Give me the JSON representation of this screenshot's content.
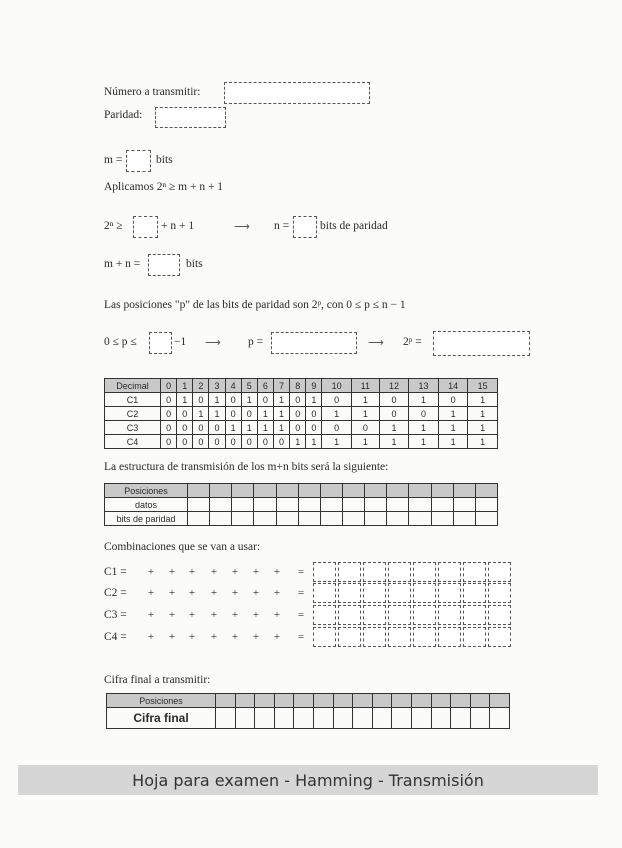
{
  "header": {
    "numero_label": "Número a transmitir:",
    "paridad_label": "Paridad:"
  },
  "calc": {
    "m_prefix": "m =",
    "m_suffix": "bits",
    "aplicamos": "Aplicamos 2ⁿ ≥ m + n + 1",
    "ineq_prefix": "2ⁿ ≥",
    "ineq_suffix": "+ n + 1",
    "arrow": "⟶",
    "n_prefix": "n =",
    "n_suffix": "bits de paridad",
    "mn_prefix": "m + n =",
    "mn_suffix": "bits"
  },
  "positions": {
    "text": "Las posiciones \"p\" de las bits de paridad son 2ᵖ, con  0 ≤ p ≤ n − 1",
    "range_prefix": "0 ≤ p ≤",
    "range_suffix": "−1",
    "p_label": "p =",
    "pow_label": "2ᵖ ="
  },
  "binary_table": {
    "header": [
      "Decimal",
      "0",
      "1",
      "2",
      "3",
      "4",
      "5",
      "6",
      "7",
      "8",
      "9",
      "10",
      "11",
      "12",
      "13",
      "14",
      "15"
    ],
    "rows": [
      [
        "C1",
        "0",
        "1",
        "0",
        "1",
        "0",
        "1",
        "0",
        "1",
        "0",
        "1",
        "0",
        "1",
        "0",
        "1",
        "0",
        "1"
      ],
      [
        "C2",
        "0",
        "0",
        "1",
        "1",
        "0",
        "0",
        "1",
        "1",
        "0",
        "0",
        "1",
        "1",
        "0",
        "0",
        "1",
        "1"
      ],
      [
        "C3",
        "0",
        "0",
        "0",
        "0",
        "1",
        "1",
        "1",
        "1",
        "0",
        "0",
        "0",
        "0",
        "1",
        "1",
        "1",
        "1"
      ],
      [
        "C4",
        "0",
        "0",
        "0",
        "0",
        "0",
        "0",
        "0",
        "0",
        "1",
        "1",
        "1",
        "1",
        "1",
        "1",
        "1",
        "1"
      ]
    ]
  },
  "structure": {
    "title": "La estructura de transmisión de los m+n bits será la siguiente:",
    "rows": [
      "Posiciones",
      "datos",
      "bits de paridad"
    ]
  },
  "combinations": {
    "title": "Combinaciones que se van a usar:",
    "rows": [
      {
        "label": "C1 =",
        "signs": [
          "+",
          "+",
          "+",
          "+",
          "+",
          "+",
          "+"
        ],
        "eq": "="
      },
      {
        "label": "C2 =",
        "signs": [
          "+",
          "+",
          "+",
          "+",
          "+",
          "+",
          "+"
        ],
        "eq": "="
      },
      {
        "label": "C3 =",
        "signs": [
          "+",
          "+",
          "+",
          "+",
          "+",
          "+",
          "+"
        ],
        "eq": "="
      },
      {
        "label": "C4 =",
        "signs": [
          "+",
          "+",
          "+",
          "+",
          "+",
          "+",
          "+"
        ],
        "eq": "="
      }
    ]
  },
  "final": {
    "title": "Cifra final a transmitir:",
    "rows": [
      "Posiciones",
      "Cifra final"
    ]
  },
  "footer": {
    "title": "Hoja para examen - Hamming - Transmisión"
  }
}
